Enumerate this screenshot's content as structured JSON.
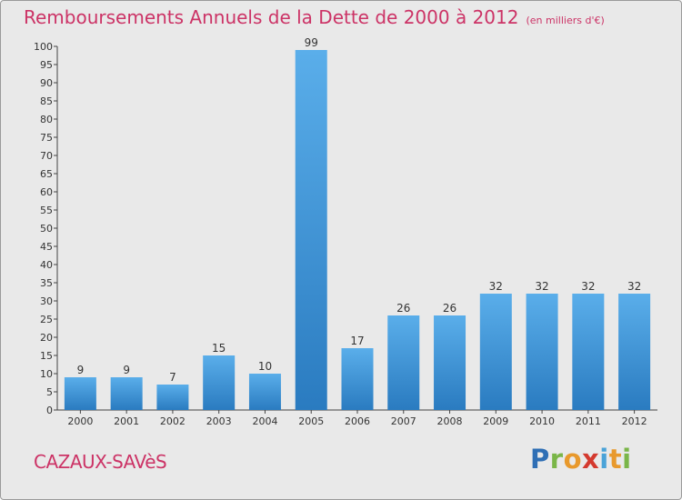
{
  "chart_data": {
    "type": "bar",
    "title": "Remboursements Annuels de la Dette de 2000 à 2012",
    "unit": "(en milliers d'€)",
    "categories": [
      "2000",
      "2001",
      "2002",
      "2003",
      "2004",
      "2005",
      "2006",
      "2007",
      "2008",
      "2009",
      "2010",
      "2011",
      "2012"
    ],
    "values": [
      9,
      9,
      7,
      15,
      10,
      99,
      17,
      26,
      26,
      32,
      32,
      32,
      32
    ],
    "ylim": [
      0,
      100
    ],
    "yticks": [
      0,
      5,
      10,
      15,
      20,
      25,
      30,
      35,
      40,
      45,
      50,
      55,
      60,
      65,
      70,
      75,
      80,
      85,
      90,
      95,
      100
    ],
    "grid": false,
    "bar_color": "#4a9fe0"
  },
  "footer": {
    "commune": "CAZAUX-SAVèS",
    "brand_letters": [
      {
        "ch": "P",
        "color": "#2f6fb5"
      },
      {
        "ch": "r",
        "color": "#7ab648"
      },
      {
        "ch": "o",
        "color": "#e8992c"
      },
      {
        "ch": "x",
        "color": "#d43a2f"
      },
      {
        "ch": "i",
        "color": "#4aa3d8"
      },
      {
        "ch": "t",
        "color": "#e8992c"
      },
      {
        "ch": "i",
        "color": "#7ab648"
      }
    ]
  },
  "colors": {
    "title": "#cc3366",
    "background": "#e9e9e9"
  }
}
